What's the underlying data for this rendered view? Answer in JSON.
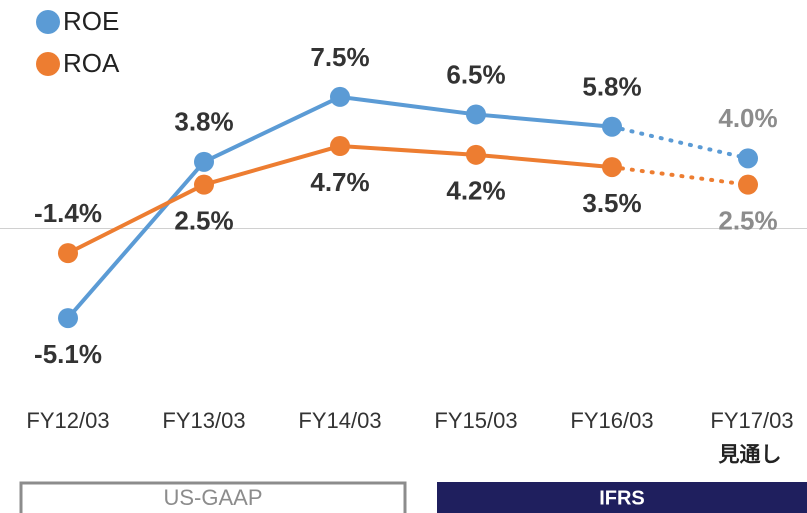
{
  "chart_data": {
    "type": "line",
    "categories": [
      "FY12/03",
      "FY13/03",
      "FY14/03",
      "FY15/03",
      "FY16/03",
      "FY17/03"
    ],
    "category_note": "見通し",
    "series": [
      {
        "name": "ROE",
        "color": "#5b9bd5",
        "values": [
          -5.1,
          3.8,
          7.5,
          6.5,
          5.8,
          4.0
        ],
        "value_labels": [
          "-5.1%",
          "3.8%",
          "7.5%",
          "6.5%",
          "5.8%",
          "4.0%"
        ]
      },
      {
        "name": "ROA",
        "color": "#ed7d31",
        "values": [
          -1.4,
          2.5,
          4.7,
          4.2,
          3.5,
          2.5
        ],
        "value_labels": [
          "-1.4%",
          "2.5%",
          "4.7%",
          "4.2%",
          "3.5%",
          "2.5%"
        ]
      }
    ],
    "ylim": [
      -8,
      10
    ],
    "zero_line": true,
    "forecast_start": 4,
    "forecast_label_color": "#8c8c8c",
    "label_color": "#333333",
    "legend": "top-left",
    "periods": [
      {
        "label": "US-GAAP",
        "color": "#8c8c8c"
      },
      {
        "label": "IFRS",
        "color": "#1f1f5e"
      }
    ]
  }
}
